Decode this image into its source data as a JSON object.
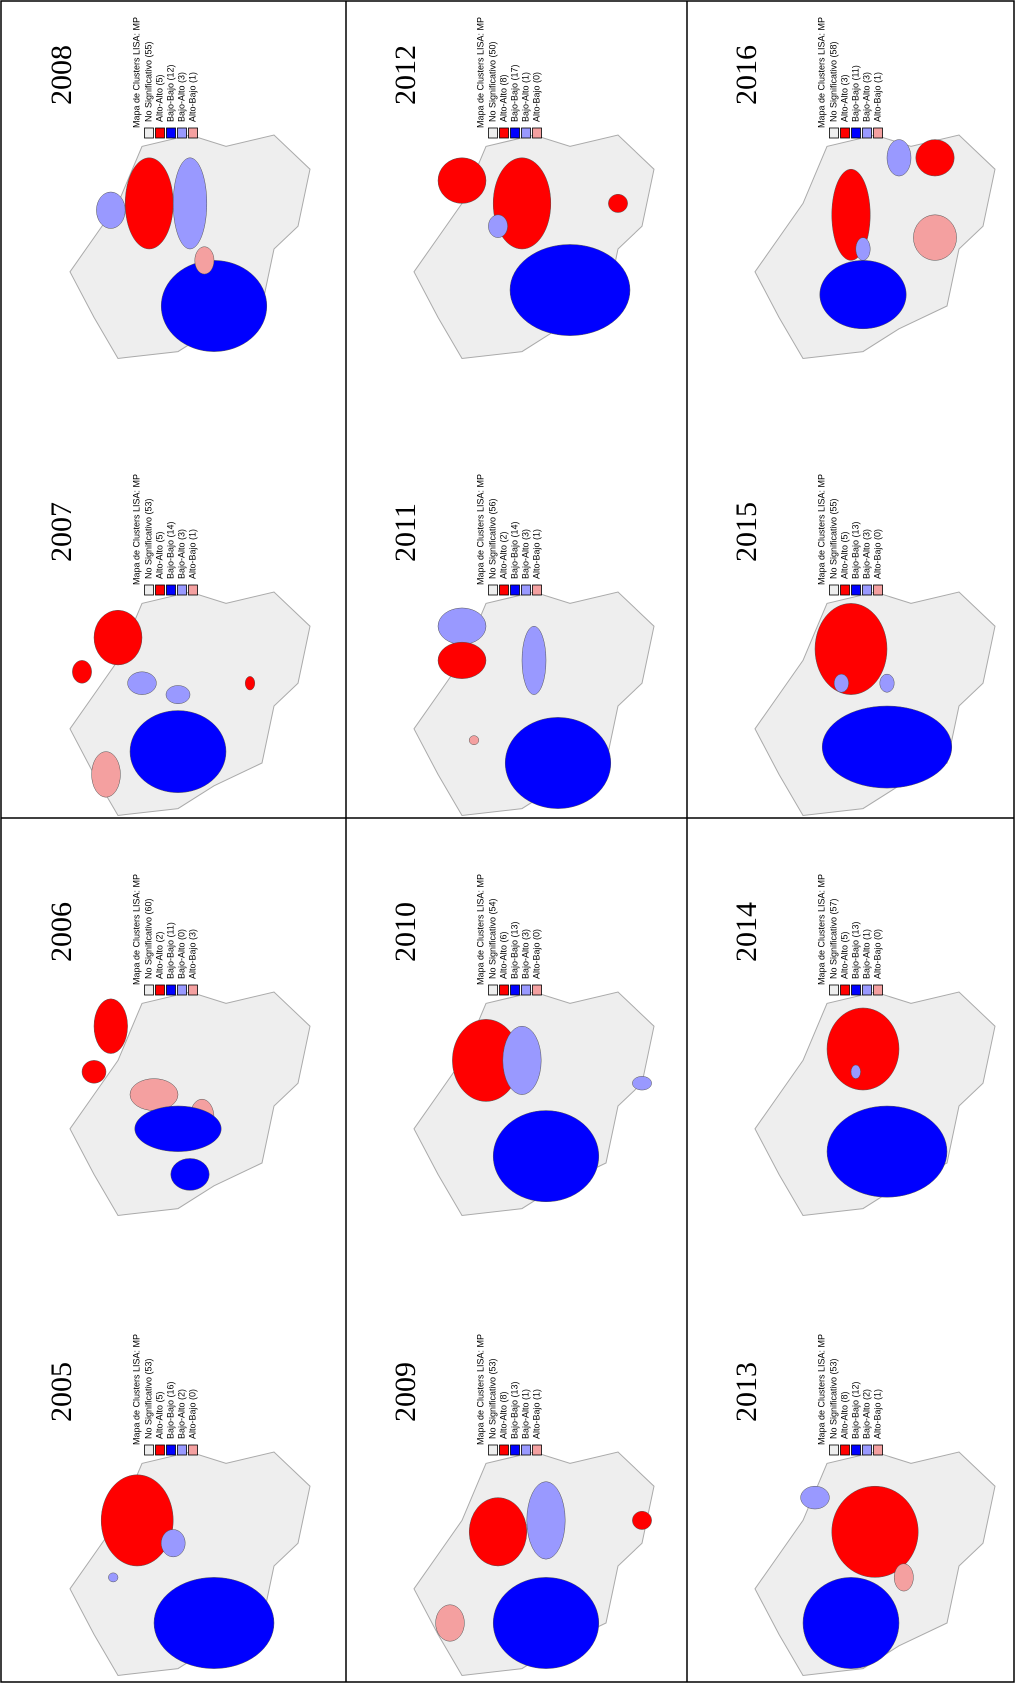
{
  "panels": [
    {
      "year": "2005",
      "legend_title": "Mapa de Clusters LISA: MP",
      "legend": [
        "No Significativo (53)",
        "Alto-Alto (5)",
        "Bajo-Bajo (16)",
        "Bajo-Alto (2)",
        "Alto-Bajo (0)"
      ]
    },
    {
      "year": "2006",
      "legend_title": "Mapa de Clusters LISA: MP",
      "legend": [
        "No Significativo (60)",
        "Alto-Alto (2)",
        "Bajo-Bajo (11)",
        "Bajo-Alto (0)",
        "Alto-Bajo (3)"
      ]
    },
    {
      "year": "2007",
      "legend_title": "Mapa de Clusters LISA: MP",
      "legend": [
        "No Significativo (53)",
        "Alto-Alto (5)",
        "Bajo-Bajo (14)",
        "Bajo-Alto (3)",
        "Alto-Bajo (1)"
      ]
    },
    {
      "year": "2008",
      "legend_title": "Mapa de Clusters LISA: MP",
      "legend": [
        "No Significativo (55)",
        "Alto-Alto (5)",
        "Bajo-Bajo (12)",
        "Bajo-Alto (3)",
        "Alto-Bajo (1)"
      ]
    },
    {
      "year": "2009",
      "legend_title": "Mapa de Clusters LISA: MP",
      "legend": [
        "No Significativo (53)",
        "Alto-Alto (8)",
        "Bajo-Bajo (13)",
        "Bajo-Alto (1)",
        "Alto-Bajo (1)"
      ]
    },
    {
      "year": "2010",
      "legend_title": "Mapa de Clusters LISA: MP",
      "legend": [
        "No Significativo (54)",
        "Alto-Alto (6)",
        "Bajo-Bajo (13)",
        "Bajo-Alto (3)",
        "Alto-Bajo (0)"
      ]
    },
    {
      "year": "2011",
      "legend_title": "Mapa de Clusters LISA: MP",
      "legend": [
        "No Significativo (56)",
        "Alto-Alto (2)",
        "Bajo-Bajo (14)",
        "Bajo-Alto (3)",
        "Alto-Bajo (1)"
      ]
    },
    {
      "year": "2012",
      "legend_title": "Mapa de Clusters LISA: MP",
      "legend": [
        "No Significativo (50)",
        "Alto-Alto (8)",
        "Bajo-Bajo (17)",
        "Bajo-Alto (1)",
        "Alto-Bajo (0)"
      ]
    },
    {
      "year": "2013",
      "legend_title": "Mapa de Clusters LISA: MP",
      "legend": [
        "No Significativo (53)",
        "Alto-Alto (8)",
        "Bajo-Bajo (12)",
        "Bajo-Alto (2)",
        "Alto-Bajo (1)"
      ]
    },
    {
      "year": "2014",
      "legend_title": "Mapa de Clusters LISA: MP",
      "legend": [
        "No Significativo (57)",
        "Alto-Alto (5)",
        "Bajo-Bajo (13)",
        "Bajo-Alto (1)",
        "Alto-Bajo (0)"
      ]
    },
    {
      "year": "2015",
      "legend_title": "Mapa de Clusters LISA: MP",
      "legend": [
        "No Significativo (55)",
        "Alto-Alto (5)",
        "Bajo-Bajo (13)",
        "Bajo-Alto (3)",
        "Alto-Bajo (0)"
      ]
    },
    {
      "year": "2016",
      "legend_title": "Mapa de Clusters LISA: MP",
      "legend": [
        "No Significativo (58)",
        "Alto-Alto (3)",
        "Bajo-Bajo (11)",
        "Bajo-Alto (3)",
        "Alto-Bajo (1)"
      ]
    }
  ]
}
